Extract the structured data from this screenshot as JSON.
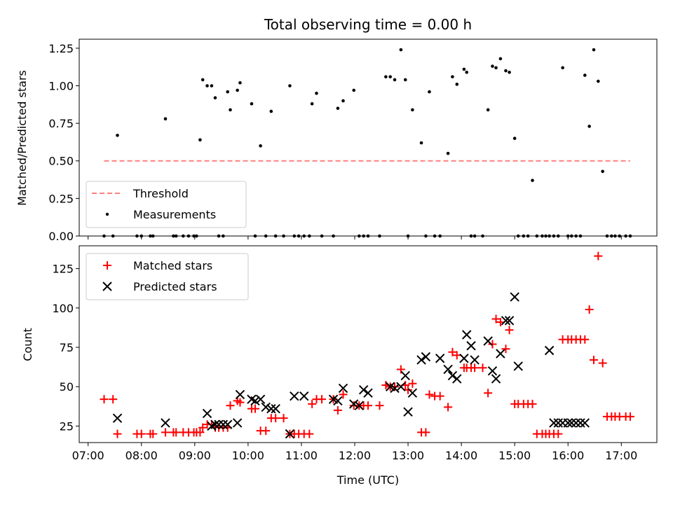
{
  "chart_data": [
    {
      "type": "scatter",
      "title": "Total observing time = 0.00 h",
      "xlabel": "",
      "ylabel": "Matched/Predicted stars",
      "xlim": [
        "06:50",
        "17:40"
      ],
      "ylim": [
        0.0,
        1.31
      ],
      "yticks": [
        0.0,
        0.25,
        0.5,
        0.75,
        1.0,
        1.25
      ],
      "ytick_labels": [
        "0.00",
        "0.25",
        "0.50",
        "0.75",
        "1.00",
        "1.25"
      ],
      "xticks": [
        "07:00",
        "08:00",
        "09:00",
        "10:00",
        "11:00",
        "12:00",
        "13:00",
        "14:00",
        "15:00",
        "16:00",
        "17:00"
      ],
      "show_xtick_labels": false,
      "grid": false,
      "legend": {
        "location": "lower-left",
        "entries": [
          {
            "label": "Threshold",
            "style": "dashed-line",
            "color": "#ff7f7f"
          },
          {
            "label": "Measurements",
            "style": "dot",
            "color": "#000000"
          }
        ]
      },
      "series": [
        {
          "name": "Threshold",
          "kind": "line",
          "color": "#ff7f7f",
          "x": [
            "07:18",
            "17:10"
          ],
          "y": [
            0.5,
            0.5
          ]
        },
        {
          "name": "Measurements",
          "kind": "scatter",
          "color": "#000000",
          "x": [
            "07:18",
            "07:28",
            "07:33",
            "07:55",
            "08:00",
            "08:10",
            "08:13",
            "08:27",
            "08:36",
            "08:39",
            "08:47",
            "08:53",
            "08:59",
            "09:02",
            "09:06",
            "09:09",
            "09:14",
            "09:19",
            "09:23",
            "09:27",
            "09:32",
            "09:37",
            "09:40",
            "09:48",
            "09:51",
            "10:04",
            "10:08",
            "10:14",
            "10:20",
            "10:26",
            "10:31",
            "10:40",
            "10:47",
            "10:52",
            "10:57",
            "11:03",
            "11:09",
            "11:12",
            "11:17",
            "11:23",
            "11:36",
            "11:41",
            "11:47",
            "11:59",
            "12:05",
            "12:10",
            "12:15",
            "12:28",
            "12:35",
            "12:40",
            "12:45",
            "12:52",
            "12:57",
            "13:00",
            "13:05",
            "13:15",
            "13:20",
            "13:24",
            "13:30",
            "13:36",
            "13:45",
            "13:50",
            "13:55",
            "14:03",
            "14:06",
            "14:11",
            "14:15",
            "14:24",
            "14:30",
            "14:35",
            "14:39",
            "14:44",
            "14:50",
            "14:54",
            "15:00",
            "15:04",
            "15:10",
            "15:15",
            "15:20",
            "15:25",
            "15:31",
            "15:35",
            "15:39",
            "15:44",
            "15:49",
            "15:54",
            "16:00",
            "16:04",
            "16:09",
            "16:14",
            "16:19",
            "16:24",
            "16:29",
            "16:34",
            "16:39",
            "16:44",
            "16:49",
            "16:53",
            "16:58",
            "17:05",
            "17:10"
          ],
          "y": [
            0.0,
            0.0,
            0.67,
            0.0,
            0.0,
            0.0,
            0.0,
            0.78,
            0.0,
            0.0,
            0.0,
            0.0,
            0.0,
            0.0,
            0.64,
            1.04,
            1.0,
            1.0,
            0.92,
            0.0,
            0.0,
            0.96,
            0.84,
            0.97,
            1.02,
            0.88,
            0.0,
            0.6,
            0.0,
            0.83,
            0.0,
            0.0,
            1.0,
            0.0,
            0.0,
            0.0,
            0.0,
            0.88,
            0.95,
            0.0,
            0.0,
            0.85,
            0.9,
            0.97,
            0.0,
            0.0,
            0.0,
            0.0,
            1.06,
            1.06,
            1.04,
            1.24,
            1.04,
            0.0,
            0.84,
            0.62,
            0.0,
            0.96,
            0.0,
            0.0,
            0.55,
            1.06,
            1.01,
            1.11,
            1.09,
            0.0,
            0.0,
            0.0,
            0.84,
            1.13,
            1.12,
            1.18,
            1.1,
            1.09,
            0.65,
            0.0,
            0.0,
            0.0,
            0.37,
            0.0,
            0.0,
            0.0,
            0.0,
            0.0,
            0.0,
            1.12,
            0.0,
            0.0,
            0.0,
            0.0,
            1.07,
            0.73,
            1.24,
            1.03,
            0.43,
            0.0,
            0.0,
            0.0,
            0.0,
            0.0,
            0.0
          ]
        }
      ]
    },
    {
      "type": "scatter",
      "title": "",
      "xlabel": "Time (UTC)",
      "ylabel": "Count",
      "xlim": [
        "06:50",
        "17:40"
      ],
      "ylim": [
        14.5,
        139.5
      ],
      "yticks": [
        25,
        50,
        75,
        100,
        125
      ],
      "ytick_labels": [
        "25",
        "50",
        "75",
        "100",
        "125"
      ],
      "xticks": [
        "07:00",
        "08:00",
        "09:00",
        "10:00",
        "11:00",
        "12:00",
        "13:00",
        "14:00",
        "15:00",
        "16:00",
        "17:00"
      ],
      "xtick_labels": [
        "07:00",
        "08:00",
        "09:00",
        "10:00",
        "11:00",
        "12:00",
        "13:00",
        "14:00",
        "15:00",
        "16:00",
        "17:00"
      ],
      "grid": false,
      "legend": {
        "location": "top-left",
        "entries": [
          {
            "label": "Matched stars",
            "style": "plus",
            "color": "#ff0000"
          },
          {
            "label": "Predicted stars",
            "style": "x",
            "color": "#000000"
          }
        ]
      },
      "series": [
        {
          "name": "Matched stars",
          "kind": "scatter",
          "marker": "plus",
          "color": "#ff0000",
          "x": [
            "07:18",
            "07:28",
            "07:33",
            "07:55",
            "08:00",
            "08:10",
            "08:13",
            "08:27",
            "08:36",
            "08:39",
            "08:47",
            "08:53",
            "08:59",
            "09:02",
            "09:06",
            "09:09",
            "09:14",
            "09:19",
            "09:23",
            "09:27",
            "09:32",
            "09:37",
            "09:40",
            "09:48",
            "09:51",
            "10:04",
            "10:08",
            "10:14",
            "10:20",
            "10:26",
            "10:31",
            "10:40",
            "10:47",
            "10:52",
            "10:57",
            "11:03",
            "11:09",
            "11:12",
            "11:17",
            "11:23",
            "11:36",
            "11:41",
            "11:47",
            "11:59",
            "12:05",
            "12:10",
            "12:15",
            "12:28",
            "12:35",
            "12:40",
            "12:45",
            "12:52",
            "12:57",
            "13:00",
            "13:05",
            "13:15",
            "13:20",
            "13:24",
            "13:30",
            "13:36",
            "13:45",
            "13:50",
            "13:55",
            "14:03",
            "14:06",
            "14:11",
            "14:15",
            "14:24",
            "14:30",
            "14:35",
            "14:39",
            "14:44",
            "14:50",
            "14:54",
            "15:00",
            "15:04",
            "15:10",
            "15:15",
            "15:20",
            "15:25",
            "15:31",
            "15:35",
            "15:39",
            "15:44",
            "15:49",
            "15:54",
            "16:00",
            "16:04",
            "16:09",
            "16:14",
            "16:19",
            "16:24",
            "16:29",
            "16:34",
            "16:39",
            "16:44",
            "16:49",
            "16:53",
            "16:58",
            "17:05",
            "17:10"
          ],
          "y": [
            42,
            42,
            20,
            20,
            20,
            20,
            20,
            21,
            21,
            21,
            21,
            21,
            21,
            21,
            21,
            24,
            26,
            26,
            24,
            24,
            24,
            24,
            38,
            41,
            40,
            36,
            36,
            22,
            22,
            30,
            30,
            30,
            20,
            20,
            20,
            20,
            20,
            39,
            42,
            42,
            42,
            35,
            45,
            38,
            38,
            38,
            38,
            38,
            51,
            50,
            50,
            61,
            51,
            48,
            52,
            21,
            21,
            45,
            44,
            44,
            37,
            72,
            70,
            62,
            62,
            62,
            62,
            62,
            46,
            77,
            93,
            91,
            74,
            86,
            39,
            39,
            39,
            39,
            39,
            20,
            20,
            20,
            20,
            20,
            20,
            80,
            80,
            80,
            80,
            80,
            80,
            99,
            67,
            133,
            65,
            31,
            31,
            31,
            31,
            31,
            31
          ]
        },
        {
          "name": "Predicted stars",
          "kind": "scatter",
          "marker": "x",
          "color": "#000000",
          "x": [
            "07:33",
            "08:27",
            "09:14",
            "09:19",
            "09:23",
            "09:27",
            "09:32",
            "09:37",
            "09:48",
            "09:51",
            "10:04",
            "10:08",
            "10:14",
            "10:20",
            "10:26",
            "10:31",
            "10:47",
            "10:52",
            "11:03",
            "11:36",
            "11:41",
            "11:47",
            "11:59",
            "12:05",
            "12:10",
            "12:15",
            "12:40",
            "12:45",
            "12:52",
            "12:57",
            "13:00",
            "13:05",
            "13:15",
            "13:20",
            "13:36",
            "13:45",
            "13:50",
            "13:55",
            "14:03",
            "14:06",
            "14:11",
            "14:15",
            "14:30",
            "14:35",
            "14:39",
            "14:44",
            "14:50",
            "14:54",
            "15:00",
            "15:04",
            "15:39",
            "15:44",
            "15:49",
            "15:54",
            "16:00",
            "16:04",
            "16:09",
            "16:14",
            "16:19"
          ],
          "y": [
            30,
            27,
            33,
            25,
            26,
            26,
            26,
            26,
            27,
            45,
            42,
            41,
            42,
            37,
            36,
            36,
            20,
            44,
            44,
            42,
            41,
            49,
            39,
            38,
            48,
            46,
            50,
            49,
            50,
            57,
            34,
            46,
            67,
            69,
            68,
            61,
            57,
            55,
            68,
            83,
            76,
            67,
            79,
            60,
            55,
            71,
            92,
            92,
            107,
            63,
            73,
            27,
            27,
            27,
            27,
            27,
            27,
            27,
            27
          ]
        }
      ]
    }
  ]
}
